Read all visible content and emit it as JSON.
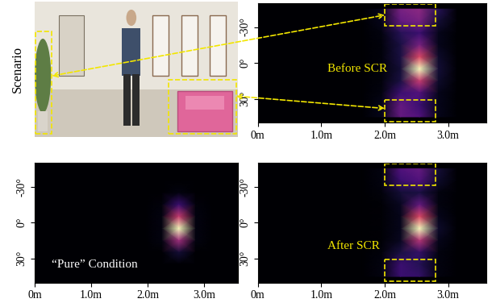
{
  "scenario": {
    "label": "Scenario"
  },
  "chart_data": [
    {
      "type": "heatmap",
      "annotation": "Before SCR",
      "color": "magma",
      "x": [
        0.15,
        0.45,
        0.75,
        1.05,
        1.35,
        1.65,
        1.95,
        2.25,
        2.55,
        2.85,
        3.15,
        3.45
      ],
      "y": [
        -45,
        -35,
        -25,
        -15,
        -5,
        5,
        15,
        25,
        35,
        45
      ],
      "cells": [
        [
          0,
          0,
          0,
          0,
          0,
          0,
          0.05,
          0.35,
          0.4,
          0.15,
          0,
          0
        ],
        [
          0,
          0,
          0,
          0,
          0,
          0,
          0.05,
          0.3,
          0.35,
          0.1,
          0,
          0
        ],
        [
          0,
          0,
          0,
          0,
          0,
          0,
          0.03,
          0.15,
          0.2,
          0.05,
          0,
          0
        ],
        [
          0,
          0,
          0,
          0,
          0,
          0,
          0.02,
          0.12,
          0.35,
          0.05,
          0,
          0
        ],
        [
          0,
          0,
          0,
          0,
          0,
          0,
          0.02,
          0.12,
          0.6,
          0.08,
          0,
          0
        ],
        [
          0,
          0,
          0,
          0,
          0,
          0,
          0.02,
          0.1,
          1.0,
          0.1,
          0,
          0
        ],
        [
          0,
          0,
          0,
          0,
          0,
          0,
          0.02,
          0.12,
          0.55,
          0.08,
          0,
          0
        ],
        [
          0,
          0,
          0,
          0,
          0,
          0,
          0.03,
          0.2,
          0.25,
          0.05,
          0,
          0
        ],
        [
          0,
          0,
          0,
          0,
          0,
          0,
          0.05,
          0.3,
          0.2,
          0.05,
          0,
          0
        ],
        [
          0,
          0,
          0,
          0,
          0,
          0,
          0.05,
          0.3,
          0.25,
          0.05,
          0,
          0
        ]
      ],
      "xlim": [
        0,
        3.6
      ],
      "ylim": [
        50,
        -50
      ],
      "xticks": [
        {
          "value": 0,
          "label": "0m"
        },
        {
          "value": 1,
          "label": "1.0m"
        },
        {
          "value": 2,
          "label": "2.0m"
        },
        {
          "value": 3,
          "label": "3.0m"
        }
      ],
      "yticks": [
        {
          "value": -30,
          "label": "-30°"
        },
        {
          "value": 0,
          "label": "0°"
        },
        {
          "value": 30,
          "label": "30°"
        }
      ]
    },
    {
      "type": "heatmap",
      "annotation": "“Pure” Condition",
      "color": "magma",
      "x": [
        0.15,
        0.45,
        0.75,
        1.05,
        1.35,
        1.65,
        1.95,
        2.25,
        2.55,
        2.85,
        3.15,
        3.45
      ],
      "y": [
        -45,
        -35,
        -25,
        -15,
        -5,
        5,
        15,
        25,
        35,
        45
      ],
      "cells": [
        [
          0,
          0,
          0,
          0,
          0,
          0,
          0,
          0,
          0,
          0,
          0,
          0
        ],
        [
          0,
          0,
          0,
          0,
          0,
          0,
          0,
          0,
          0,
          0,
          0,
          0
        ],
        [
          0,
          0,
          0,
          0,
          0,
          0,
          0,
          0,
          0.03,
          0,
          0,
          0
        ],
        [
          0,
          0,
          0,
          0,
          0,
          0,
          0,
          0.02,
          0.2,
          0.02,
          0,
          0
        ],
        [
          0,
          0,
          0,
          0,
          0,
          0,
          0,
          0.03,
          0.55,
          0.03,
          0,
          0
        ],
        [
          0,
          0,
          0,
          0,
          0,
          0,
          0,
          0.03,
          1.0,
          0.03,
          0,
          0
        ],
        [
          0,
          0,
          0,
          0,
          0,
          0,
          0,
          0.03,
          0.45,
          0.03,
          0,
          0
        ],
        [
          0,
          0,
          0,
          0,
          0,
          0,
          0,
          0,
          0.1,
          0,
          0,
          0
        ],
        [
          0,
          0,
          0,
          0,
          0,
          0,
          0,
          0,
          0,
          0,
          0,
          0
        ],
        [
          0,
          0,
          0,
          0,
          0,
          0,
          0,
          0,
          0,
          0,
          0,
          0
        ]
      ],
      "xlim": [
        0,
        3.6
      ],
      "ylim": [
        50,
        -50
      ],
      "xticks": [
        {
          "value": 0,
          "label": "0m"
        },
        {
          "value": 1,
          "label": "1.0m"
        },
        {
          "value": 2,
          "label": "2.0m"
        },
        {
          "value": 3,
          "label": "3.0m"
        }
      ],
      "yticks": [
        {
          "value": -30,
          "label": "-30°"
        },
        {
          "value": 0,
          "label": "0°"
        },
        {
          "value": 30,
          "label": "30°"
        }
      ]
    },
    {
      "type": "heatmap",
      "annotation": "After SCR",
      "color": "magma",
      "x": [
        0.15,
        0.45,
        0.75,
        1.05,
        1.35,
        1.65,
        1.95,
        2.25,
        2.55,
        2.85,
        3.15,
        3.45
      ],
      "y": [
        -45,
        -35,
        -25,
        -15,
        -5,
        5,
        15,
        25,
        35,
        45
      ],
      "cells": [
        [
          0,
          0,
          0,
          0,
          0,
          0,
          0.03,
          0.25,
          0.3,
          0.1,
          0,
          0
        ],
        [
          0,
          0,
          0,
          0,
          0,
          0,
          0.03,
          0.2,
          0.25,
          0.08,
          0,
          0
        ],
        [
          0,
          0,
          0,
          0,
          0,
          0,
          0.02,
          0.1,
          0.12,
          0.03,
          0,
          0
        ],
        [
          0,
          0,
          0,
          0,
          0,
          0,
          0.01,
          0.06,
          0.3,
          0.03,
          0,
          0
        ],
        [
          0,
          0,
          0,
          0,
          0,
          0,
          0.01,
          0.05,
          0.6,
          0.05,
          0,
          0
        ],
        [
          0,
          0,
          0,
          0,
          0,
          0,
          0.01,
          0.05,
          1.0,
          0.08,
          0,
          0
        ],
        [
          0,
          0,
          0,
          0,
          0,
          0,
          0.01,
          0.06,
          0.5,
          0.05,
          0,
          0
        ],
        [
          0,
          0,
          0,
          0,
          0,
          0,
          0.02,
          0.12,
          0.18,
          0.03,
          0,
          0
        ],
        [
          0,
          0,
          0,
          0,
          0,
          0,
          0.03,
          0.2,
          0.15,
          0.03,
          0,
          0
        ],
        [
          0,
          0,
          0,
          0,
          0,
          0,
          0.03,
          0.2,
          0.18,
          0.03,
          0,
          0
        ]
      ],
      "xlim": [
        0,
        3.6
      ],
      "ylim": [
        50,
        -50
      ],
      "xticks": [
        {
          "value": 0,
          "label": "0m"
        },
        {
          "value": 1,
          "label": "1.0m"
        },
        {
          "value": 2,
          "label": "2.0m"
        },
        {
          "value": 3,
          "label": "3.0m"
        }
      ],
      "yticks": [
        {
          "value": -30,
          "label": "-30°"
        },
        {
          "value": 0,
          "label": "0°"
        },
        {
          "value": 30,
          "label": "30°"
        }
      ]
    }
  ]
}
